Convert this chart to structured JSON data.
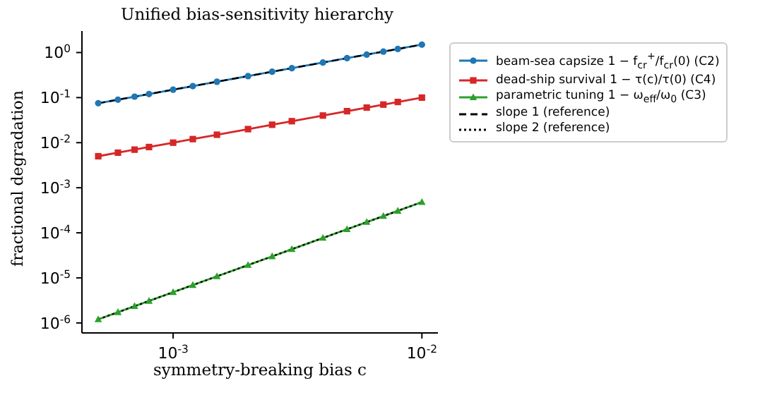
{
  "chart_data": {
    "type": "line",
    "title": "Unified bias-sensitivity hierarchy",
    "xlabel": "symmetry-breaking bias c",
    "ylabel": "fractional degradation",
    "log": "xy",
    "grid": false,
    "legend": "right",
    "x": [
      0.0005,
      0.0006,
      0.0007,
      0.0008,
      0.001,
      0.0012,
      0.0015,
      0.002,
      0.0025,
      0.003,
      0.004,
      0.005,
      0.006,
      0.007,
      0.008,
      0.01
    ],
    "xlim": [
      0.00043,
      0.0116
    ],
    "xticks": [
      {
        "value": 0.001,
        "label": "10$^{-3}$"
      },
      {
        "value": 0.01,
        "label": "10$^{-2}$"
      }
    ],
    "ylim": [
      6e-07,
      3
    ],
    "yticks": [
      {
        "value": 1e-06,
        "label": "10$^{-6}$"
      },
      {
        "value": 1e-05,
        "label": "10$^{-5}$"
      },
      {
        "value": 0.0001,
        "label": "10$^{-4}$"
      },
      {
        "value": 0.001,
        "label": "10$^{-3}$"
      },
      {
        "value": 0.01,
        "label": "10$^{-2}$"
      },
      {
        "value": 0.1,
        "label": "10$^{-1}$"
      },
      {
        "value": 1,
        "label": "10$^{0}$"
      }
    ],
    "series": [
      {
        "name": "beam-sea capsize 1 − f$_{cr}$$^{+}$/f$_{cr}$(0) (C2)",
        "color": "#1f77b4",
        "marker": "circle",
        "values": [
          0.075,
          0.09,
          0.105,
          0.12,
          0.15,
          0.18,
          0.225,
          0.3,
          0.375,
          0.45,
          0.6,
          0.75,
          0.9,
          1.05,
          1.2,
          1.5
        ]
      },
      {
        "name": "dead-ship survival 1 − τ(c)/τ(0) (C4)",
        "color": "#d62728",
        "marker": "square",
        "values": [
          0.005,
          0.006,
          0.007,
          0.008,
          0.01,
          0.012,
          0.015,
          0.02,
          0.025,
          0.03,
          0.04,
          0.05,
          0.06,
          0.07,
          0.08,
          0.1
        ]
      },
      {
        "name": "parametric tuning 1 − ω$_{eff}$/ω$_{0}$ (C3)",
        "color": "#2ca02c",
        "marker": "triangle",
        "values": [
          1.2e-06,
          1.728e-06,
          2.352e-06,
          3.072e-06,
          4.8e-06,
          6.912e-06,
          1.08e-05,
          1.92e-05,
          3e-05,
          4.32e-05,
          7.68e-05,
          0.00012,
          0.0001728,
          0.0002352,
          0.0003072,
          0.00048
        ]
      },
      {
        "name": "slope 1 (reference)",
        "type": "line",
        "color": "#000000",
        "marker": "none",
        "line_style": "dashed",
        "values": [
          0.075,
          0.09,
          0.105,
          0.12,
          0.15,
          0.18,
          0.225,
          0.3,
          0.375,
          0.45,
          0.6,
          0.75,
          0.9,
          1.05,
          1.2,
          1.5
        ]
      },
      {
        "name": "slope 2 (reference)",
        "type": "line",
        "color": "#000000",
        "marker": "none",
        "line_style": "dotted",
        "values": [
          1.2e-06,
          1.728e-06,
          2.352e-06,
          3.072e-06,
          4.8e-06,
          6.912e-06,
          1.08e-05,
          1.92e-05,
          3e-05,
          4.32e-05,
          7.68e-05,
          0.00012,
          0.0001728,
          0.0002352,
          0.0003072,
          0.00048
        ]
      }
    ]
  }
}
